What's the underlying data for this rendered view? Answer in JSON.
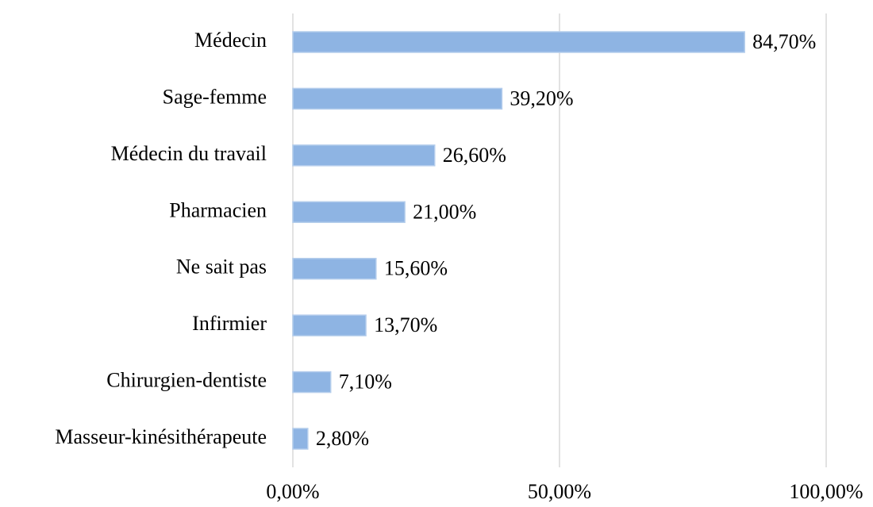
{
  "chart_data": {
    "type": "bar",
    "orientation": "horizontal",
    "categories": [
      "Médecin",
      "Sage-femme",
      "Médecin du travail",
      "Pharmacien",
      "Ne sait pas",
      "Infirmier",
      "Chirurgien-dentiste",
      "Masseur-kinésithérapeute"
    ],
    "values": [
      84.7,
      39.2,
      26.6,
      21.0,
      15.6,
      13.7,
      7.1,
      2.8
    ],
    "value_labels": [
      "84,70%",
      "39,20%",
      "26,60%",
      "21,00%",
      "15,60%",
      "13,70%",
      "7,10%",
      "2,80%"
    ],
    "color": "#8eb4e3",
    "xlim": [
      0,
      100
    ],
    "xticks": [
      {
        "value": 0,
        "label": "0,00%"
      },
      {
        "value": 50,
        "label": "50,00%"
      },
      {
        "value": 100,
        "label": "100,00%"
      }
    ],
    "grid": true
  }
}
